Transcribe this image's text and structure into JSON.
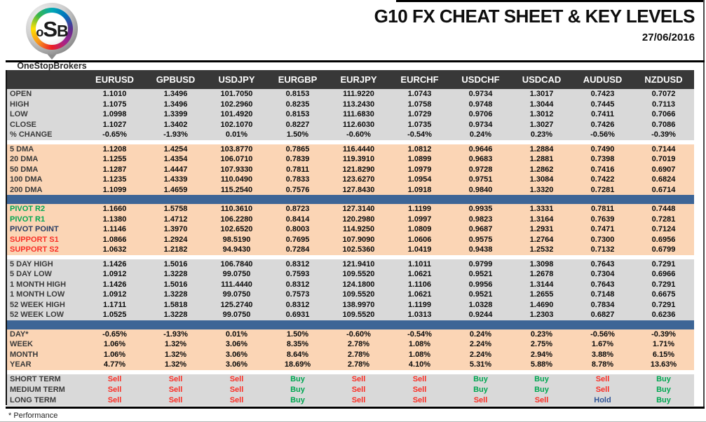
{
  "header": {
    "title": "G10 FX CHEAT SHEET & KEY LEVELS",
    "date": "27/06/2016",
    "logo": {
      "text_o": "o",
      "text_s": "S",
      "text_b": "B",
      "brand": "OneStopBrokers"
    }
  },
  "colors": {
    "header_bg": "#383838",
    "section_gray": "#d9d9d9",
    "section_peach": "#fbd5b5",
    "separator_blue": "#3d6596",
    "label_default": "#3a3a3a",
    "label_green": "#00a651",
    "label_red": "#f92f26",
    "label_navy": "#263c63",
    "signal": {
      "sell": "#f92f26",
      "buy": "#00a651",
      "hold": "#2f5496"
    }
  },
  "table": {
    "columns": [
      "EURUSD",
      "GPBUSD",
      "USDJPY",
      "EURGBP",
      "EURJPY",
      "EURCHF",
      "USDCHF",
      "USDCAD",
      "AUDUSD",
      "NZDUSD"
    ],
    "sections": [
      {
        "id": "ohlc",
        "bg": "gray",
        "gap_before": false,
        "bar_before": false,
        "rows": [
          {
            "label": "OPEN",
            "values": [
              "1.1010",
              "1.3496",
              "101.7050",
              "0.8153",
              "111.9220",
              "1.0743",
              "0.9734",
              "1.3017",
              "0.7423",
              "0.7072"
            ]
          },
          {
            "label": "HIGH",
            "values": [
              "1.1075",
              "1.3496",
              "102.2960",
              "0.8235",
              "113.2430",
              "1.0758",
              "0.9748",
              "1.3044",
              "0.7445",
              "0.7113"
            ]
          },
          {
            "label": "LOW",
            "values": [
              "1.0998",
              "1.3399",
              "101.4920",
              "0.8153",
              "111.6830",
              "1.0729",
              "0.9706",
              "1.3012",
              "0.7411",
              "0.7066"
            ]
          },
          {
            "label": "CLOSE",
            "values": [
              "1.1027",
              "1.3402",
              "102.1070",
              "0.8227",
              "112.6030",
              "1.0735",
              "0.9734",
              "1.3027",
              "0.7426",
              "0.7086"
            ]
          },
          {
            "label": "% CHANGE",
            "values": [
              "-0.65%",
              "-1.93%",
              "0.01%",
              "1.50%",
              "-0.60%",
              "-0.54%",
              "0.24%",
              "0.23%",
              "-0.56%",
              "-0.39%"
            ]
          }
        ]
      },
      {
        "id": "dma",
        "bg": "peach",
        "gap_before": true,
        "bar_before": false,
        "rows": [
          {
            "label": "5 DMA",
            "values": [
              "1.1208",
              "1.4254",
              "103.8770",
              "0.7865",
              "116.4440",
              "1.0812",
              "0.9646",
              "1.2884",
              "0.7490",
              "0.7144"
            ]
          },
          {
            "label": "20 DMA",
            "values": [
              "1.1255",
              "1.4354",
              "106.0710",
              "0.7839",
              "119.3910",
              "1.0899",
              "0.9683",
              "1.2881",
              "0.7398",
              "0.7019"
            ]
          },
          {
            "label": "50 DMA",
            "values": [
              "1.1287",
              "1.4447",
              "107.9330",
              "0.7811",
              "121.8290",
              "1.0979",
              "0.9728",
              "1.2862",
              "0.7416",
              "0.6907"
            ]
          },
          {
            "label": "100 DMA",
            "values": [
              "1.1235",
              "1.4339",
              "110.0490",
              "0.7833",
              "123.6270",
              "1.0954",
              "0.9751",
              "1.3084",
              "0.7422",
              "0.6824"
            ]
          },
          {
            "label": "200 DMA",
            "values": [
              "1.1099",
              "1.4659",
              "115.2540",
              "0.7576",
              "127.8430",
              "1.0918",
              "0.9840",
              "1.3320",
              "0.7281",
              "0.6714"
            ]
          }
        ]
      },
      {
        "id": "pivots",
        "bg": "peach",
        "gap_before": false,
        "bar_before": true,
        "rows": [
          {
            "label": "PIVOT R2",
            "lc": "green",
            "values": [
              "1.1660",
              "1.5758",
              "110.3610",
              "0.8723",
              "127.3140",
              "1.1199",
              "0.9935",
              "1.3331",
              "0.7811",
              "0.7448"
            ]
          },
          {
            "label": "PIVOT R1",
            "lc": "green",
            "values": [
              "1.1380",
              "1.4712",
              "106.2280",
              "0.8414",
              "120.2980",
              "1.0997",
              "0.9823",
              "1.3164",
              "0.7639",
              "0.7281"
            ]
          },
          {
            "label": "PIVOT POINT",
            "lc": "navy",
            "values": [
              "1.1146",
              "1.3970",
              "102.6520",
              "0.8003",
              "114.9250",
              "1.0809",
              "0.9687",
              "1.2931",
              "0.7471",
              "0.7124"
            ]
          },
          {
            "label": "SUPPORT S1",
            "lc": "red",
            "values": [
              "1.0866",
              "1.2924",
              "98.5190",
              "0.7695",
              "107.9090",
              "1.0606",
              "0.9575",
              "1.2764",
              "0.7300",
              "0.6956"
            ]
          },
          {
            "label": "SUPPORT S2",
            "lc": "red",
            "values": [
              "1.0632",
              "1.2182",
              "94.9430",
              "0.7284",
              "102.5360",
              "1.0419",
              "0.9438",
              "1.2532",
              "0.7132",
              "0.6799"
            ]
          }
        ]
      },
      {
        "id": "ranges",
        "bg": "gray",
        "gap_before": true,
        "bar_before": false,
        "rows": [
          {
            "label": "5 DAY HIGH",
            "values": [
              "1.1426",
              "1.5016",
              "106.7840",
              "0.8312",
              "121.9410",
              "1.1011",
              "0.9799",
              "1.3098",
              "0.7643",
              "0.7291"
            ]
          },
          {
            "label": "5 DAY LOW",
            "values": [
              "1.0912",
              "1.3228",
              "99.0750",
              "0.7593",
              "109.5520",
              "1.0621",
              "0.9521",
              "1.2678",
              "0.7304",
              "0.6966"
            ]
          },
          {
            "label": "1 MONTH HIGH",
            "values": [
              "1.1426",
              "1.5016",
              "111.4440",
              "0.8312",
              "124.1800",
              "1.1106",
              "0.9956",
              "1.3144",
              "0.7643",
              "0.7291"
            ]
          },
          {
            "label": "1 MONTH LOW",
            "values": [
              "1.0912",
              "1.3228",
              "99.0750",
              "0.7573",
              "109.5520",
              "1.0621",
              "0.9521",
              "1.2655",
              "0.7148",
              "0.6675"
            ]
          },
          {
            "label": "52 WEEK HIGH",
            "values": [
              "1.1711",
              "1.5818",
              "125.2740",
              "0.8312",
              "138.9970",
              "1.1199",
              "1.0328",
              "1.4690",
              "0.7834",
              "0.7291"
            ]
          },
          {
            "label": "52 WEEK LOW",
            "values": [
              "1.0525",
              "1.3228",
              "99.0750",
              "0.6931",
              "109.5520",
              "1.0313",
              "0.9244",
              "1.2303",
              "0.6827",
              "0.6236"
            ]
          }
        ]
      },
      {
        "id": "performance",
        "bg": "peach",
        "gap_before": false,
        "bar_before": true,
        "rows": [
          {
            "label": "DAY*",
            "values": [
              "-0.65%",
              "-1.93%",
              "0.01%",
              "1.50%",
              "-0.60%",
              "-0.54%",
              "0.24%",
              "0.23%",
              "-0.56%",
              "-0.39%"
            ]
          },
          {
            "label": "WEEK",
            "values": [
              "1.06%",
              "1.32%",
              "3.06%",
              "8.35%",
              "2.78%",
              "1.08%",
              "2.24%",
              "2.75%",
              "1.67%",
              "1.71%"
            ]
          },
          {
            "label": "MONTH",
            "values": [
              "1.06%",
              "1.32%",
              "3.06%",
              "8.64%",
              "2.78%",
              "1.08%",
              "2.24%",
              "2.94%",
              "3.88%",
              "6.15%"
            ]
          },
          {
            "label": "YEAR",
            "values": [
              "4.77%",
              "1.32%",
              "3.06%",
              "18.69%",
              "2.78%",
              "4.10%",
              "5.31%",
              "5.88%",
              "8.78%",
              "13.63%"
            ]
          }
        ]
      },
      {
        "id": "signals",
        "bg": "gray",
        "gap_before": true,
        "bar_before": false,
        "rows": [
          {
            "label": "SHORT TERM",
            "values": [
              "Sell",
              "Sell",
              "Sell",
              "Buy",
              "Sell",
              "Sell",
              "Buy",
              "Buy",
              "Sell",
              "Buy"
            ]
          },
          {
            "label": "MEDIUM TERM",
            "values": [
              "Sell",
              "Sell",
              "Sell",
              "Buy",
              "Sell",
              "Sell",
              "Buy",
              "Buy",
              "Sell",
              "Buy"
            ]
          },
          {
            "label": "LONG TERM",
            "values": [
              "Sell",
              "Sell",
              "Sell",
              "Buy",
              "Sell",
              "Sell",
              "Sell",
              "Sell",
              "Hold",
              "Buy"
            ]
          }
        ]
      }
    ]
  },
  "footer": {
    "note": "* Performance"
  }
}
